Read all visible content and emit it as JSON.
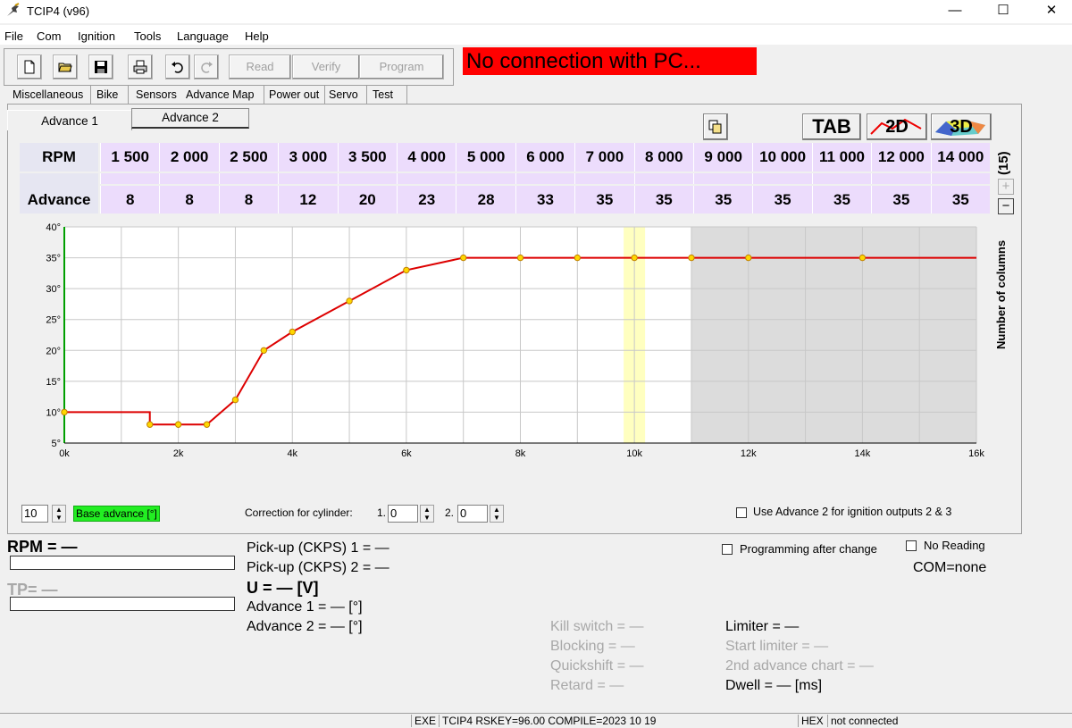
{
  "window": {
    "title": "TCIP4 (v96)",
    "minimize": "—",
    "maximize": "☐",
    "close": "✕"
  },
  "menu": [
    "File",
    "Com",
    "Ignition",
    "Tools",
    "Language",
    "Help"
  ],
  "toolbar": {
    "read": "Read",
    "verify": "Verify",
    "program": "Program"
  },
  "status_banner": "No connection with PC...",
  "tabs": [
    "Miscellaneous",
    "Bike",
    "Sensors",
    "Advance Map",
    "Power out",
    "Servo",
    "Test"
  ],
  "active_tab": "Advance Map",
  "subtabs": [
    "Advance 1",
    "Advance 2"
  ],
  "view_buttons": {
    "tab": "TAB",
    "twod": "2D",
    "threed": "3D"
  },
  "table": {
    "rpm_header": "RPM",
    "advance_header": "Advance",
    "rpm": [
      "1 500",
      "2 000",
      "2 500",
      "3 000",
      "3 500",
      "4 000",
      "5 000",
      "6 000",
      "7 000",
      "8 000",
      "9 000",
      "10 000",
      "11 000",
      "12 000",
      "14 000"
    ],
    "advance": [
      "8",
      "8",
      "8",
      "12",
      "20",
      "23",
      "28",
      "33",
      "35",
      "35",
      "35",
      "35",
      "35",
      "35",
      "35"
    ],
    "count_label": "(15)",
    "plus": "+",
    "minus": "−"
  },
  "chart_data": {
    "type": "line",
    "x": [
      0,
      1500,
      2000,
      2500,
      3000,
      3500,
      4000,
      5000,
      6000,
      7000,
      8000,
      9000,
      10000,
      11000,
      12000,
      14000,
      16000
    ],
    "series": [
      {
        "values": [
          10,
          8,
          8,
          8,
          12,
          20,
          23,
          28,
          33,
          35,
          35,
          35,
          35,
          35,
          35,
          35,
          35
        ],
        "color": "#dd0000"
      }
    ],
    "markers_x": [
      0,
      1500,
      2000,
      2500,
      3000,
      3500,
      4000,
      5000,
      6000,
      7000,
      8000,
      9000,
      10000,
      11000,
      12000,
      14000
    ],
    "xlim": [
      0,
      16000
    ],
    "ylim": [
      5,
      40
    ],
    "xticks": [
      "0k",
      "2k",
      "4k",
      "6k",
      "8k",
      "10k",
      "12k",
      "14k",
      "16k"
    ],
    "yticks": [
      "5°",
      "10°",
      "15°",
      "20°",
      "25°",
      "30°",
      "35°",
      "40°"
    ],
    "highlight_x": 10000,
    "shaded_from_x": 11000,
    "grid": true
  },
  "side_label": "Number of columns",
  "base_advance": {
    "value": "10",
    "label": "Base advance [°]"
  },
  "correction": {
    "label": "Correction for cylinder:",
    "cyl1_label": "1.",
    "cyl1_value": "0",
    "cyl2_label": "2.",
    "cyl2_value": "0"
  },
  "use_adv2_label": "Use Advance 2 for ignition outputs 2 & 3",
  "readouts": {
    "rpm": "RPM = —",
    "tp": "TP= —",
    "pickup1": "Pick-up (CKPS) 1 = —",
    "pickup2": "Pick-up (CKPS) 2 = —",
    "voltage": "U = — [V]",
    "advance1": "Advance 1 = — [°]",
    "advance2": "Advance 2 = — [°]",
    "kill_switch": "Kill switch = —",
    "blocking": "Blocking = —",
    "quickshift": "Quickshift = —",
    "retard": "Retard = —",
    "limiter": "Limiter = —",
    "start_limiter": "Start limiter = —",
    "second_chart": "2nd advance chart = —",
    "dwell": "Dwell = — [ms]"
  },
  "programming_after_change": "Programming after change",
  "no_reading": "No Reading",
  "com": "COM=none",
  "statusbar": {
    "exe": "EXE",
    "info": "TCIP4   RSKEY=96.00   COMPILE=2023 10 19",
    "hex": "HEX",
    "connection": "not connected"
  }
}
